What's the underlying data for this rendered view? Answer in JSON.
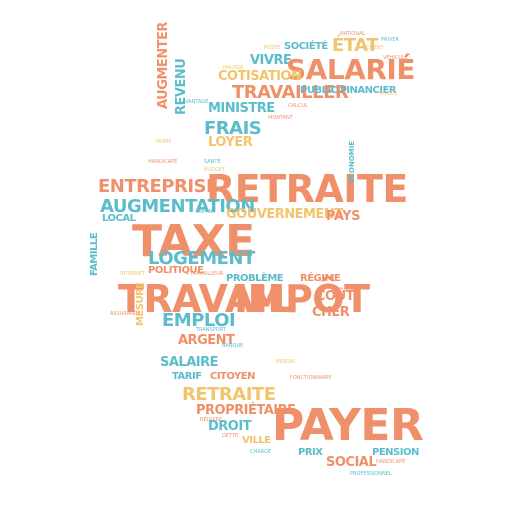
{
  "colors": {
    "orange": "#f0906a",
    "teal": "#5bbccc",
    "yellow": "#f2c46d",
    "background": "#ffffff"
  },
  "words": {
    "payer": "PAYER",
    "retraite_main": "RETRAITE",
    "salarie": "SALARIÉ",
    "travail": "TRAVAIL",
    "impot": "IMPÔT",
    "taxe": "TAXE",
    "etat": "ÉTAT",
    "entreprise": "ENTREPRISE",
    "augmentation": "AUGMENTATION",
    "logement": "LOGEMENT",
    "travailler": "TRAVAILLER",
    "societe": "SOCIÉTÉ",
    "vivre": "VIVRE",
    "cotisation": "COTISATION",
    "public": "PUBLIC",
    "financier": "FINANCIER",
    "ministre": "MINISTRE",
    "frais": "FRAIS",
    "loyer": "LOYER",
    "revenu": "REVENU",
    "augmenter": "AUGMENTER",
    "gouvernement": "GOUVERNEMENT",
    "pays": "PAYS",
    "economie": "ÉCONOMIE",
    "probleme": "PROBLÈME",
    "regime": "RÉGIME",
    "cout": "COÛT",
    "cher": "CHER",
    "emploi": "EMPLOI",
    "argent": "ARGENT",
    "salaire": "SALAIRE",
    "citoyen": "CITOYEN",
    "tarif": "TARIF",
    "retraite_small": "RETRAITE",
    "proprietaire": "PROPRIÉTAIRE",
    "droit": "DROIT",
    "ville": "VILLE",
    "prix": "PRIX",
    "social": "SOCIAL",
    "pension": "PENSION",
    "famille": "FAMILLE",
    "mesure": "MESURE",
    "politique": "POLITIQUE",
    "local": "LOCAL",
    "enfant": "ENFANT",
    "handicape": "HANDICAPÉ",
    "poste": "POSTE",
    "client": "CLIENT",
    "hausse": "HAUSSE",
    "calcul": "CALCUL",
    "acces": "ACCÈS",
    "montant": "MONTANT",
    "internet": "INTERNET",
    "travailleur": "TRAVAILLEUR",
    "fonctionnaire": "FONCTIONNAIRE",
    "national": "NATIONAL",
    "priver": "PRIVER",
    "vehicule": "VÉHICULE",
    "avantage": "AVANTAGE",
    "prime": "PRIME",
    "sante": "SANTÉ",
    "budget": "BUDGET",
    "banque": "BANQUE",
    "professionnel": "PROFESSIONNEL",
    "assurance": "ASSURANCE",
    "transport": "TRANSPORT",
    "besoin": "BESOIN",
    "dette": "DETTE",
    "charge": "CHARGE",
    "reduire": "RÉDUIRE"
  }
}
